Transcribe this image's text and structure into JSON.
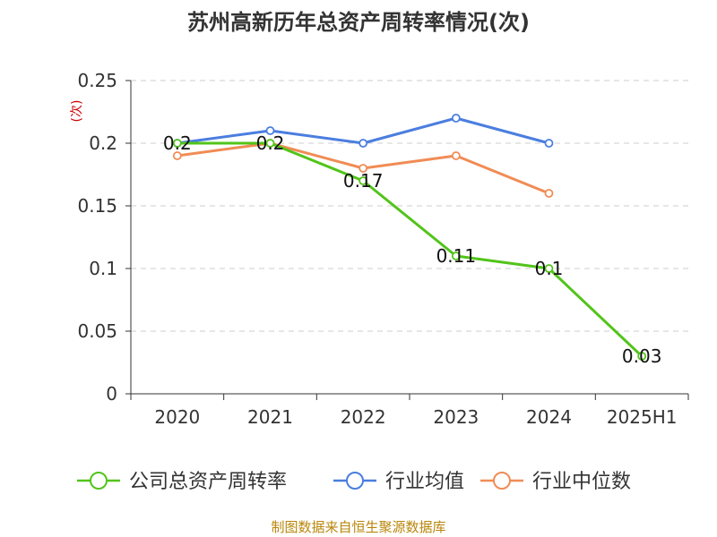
{
  "chart_data": {
    "type": "line",
    "title": "苏州高新历年总资产周转率情况(次)",
    "ylabel": "(次)",
    "xlabel": "",
    "categories": [
      "2020",
      "2021",
      "2022",
      "2023",
      "2024",
      "2025H1"
    ],
    "ylim": [
      0,
      0.25
    ],
    "yticks": [
      "0",
      "0.05",
      "0.1",
      "0.15",
      "0.2",
      "0.25"
    ],
    "grid": true,
    "legend_position": "bottom",
    "series": [
      {
        "name": "公司总资产周转率",
        "color": "#52c41a",
        "values": [
          0.2,
          0.2,
          0.17,
          0.11,
          0.1,
          0.03
        ],
        "labels": [
          "0.2",
          "0.2",
          "0.17",
          "0.11",
          "0.1",
          "0.03"
        ]
      },
      {
        "name": "行业均值",
        "color": "#4a7ee0",
        "values": [
          0.2,
          0.21,
          0.2,
          0.22,
          0.2,
          null
        ]
      },
      {
        "name": "行业中位数",
        "color": "#f08c55",
        "values": [
          0.19,
          0.2,
          0.18,
          0.19,
          0.16,
          null
        ]
      }
    ]
  },
  "source": "制图数据来自恒生聚源数据库"
}
